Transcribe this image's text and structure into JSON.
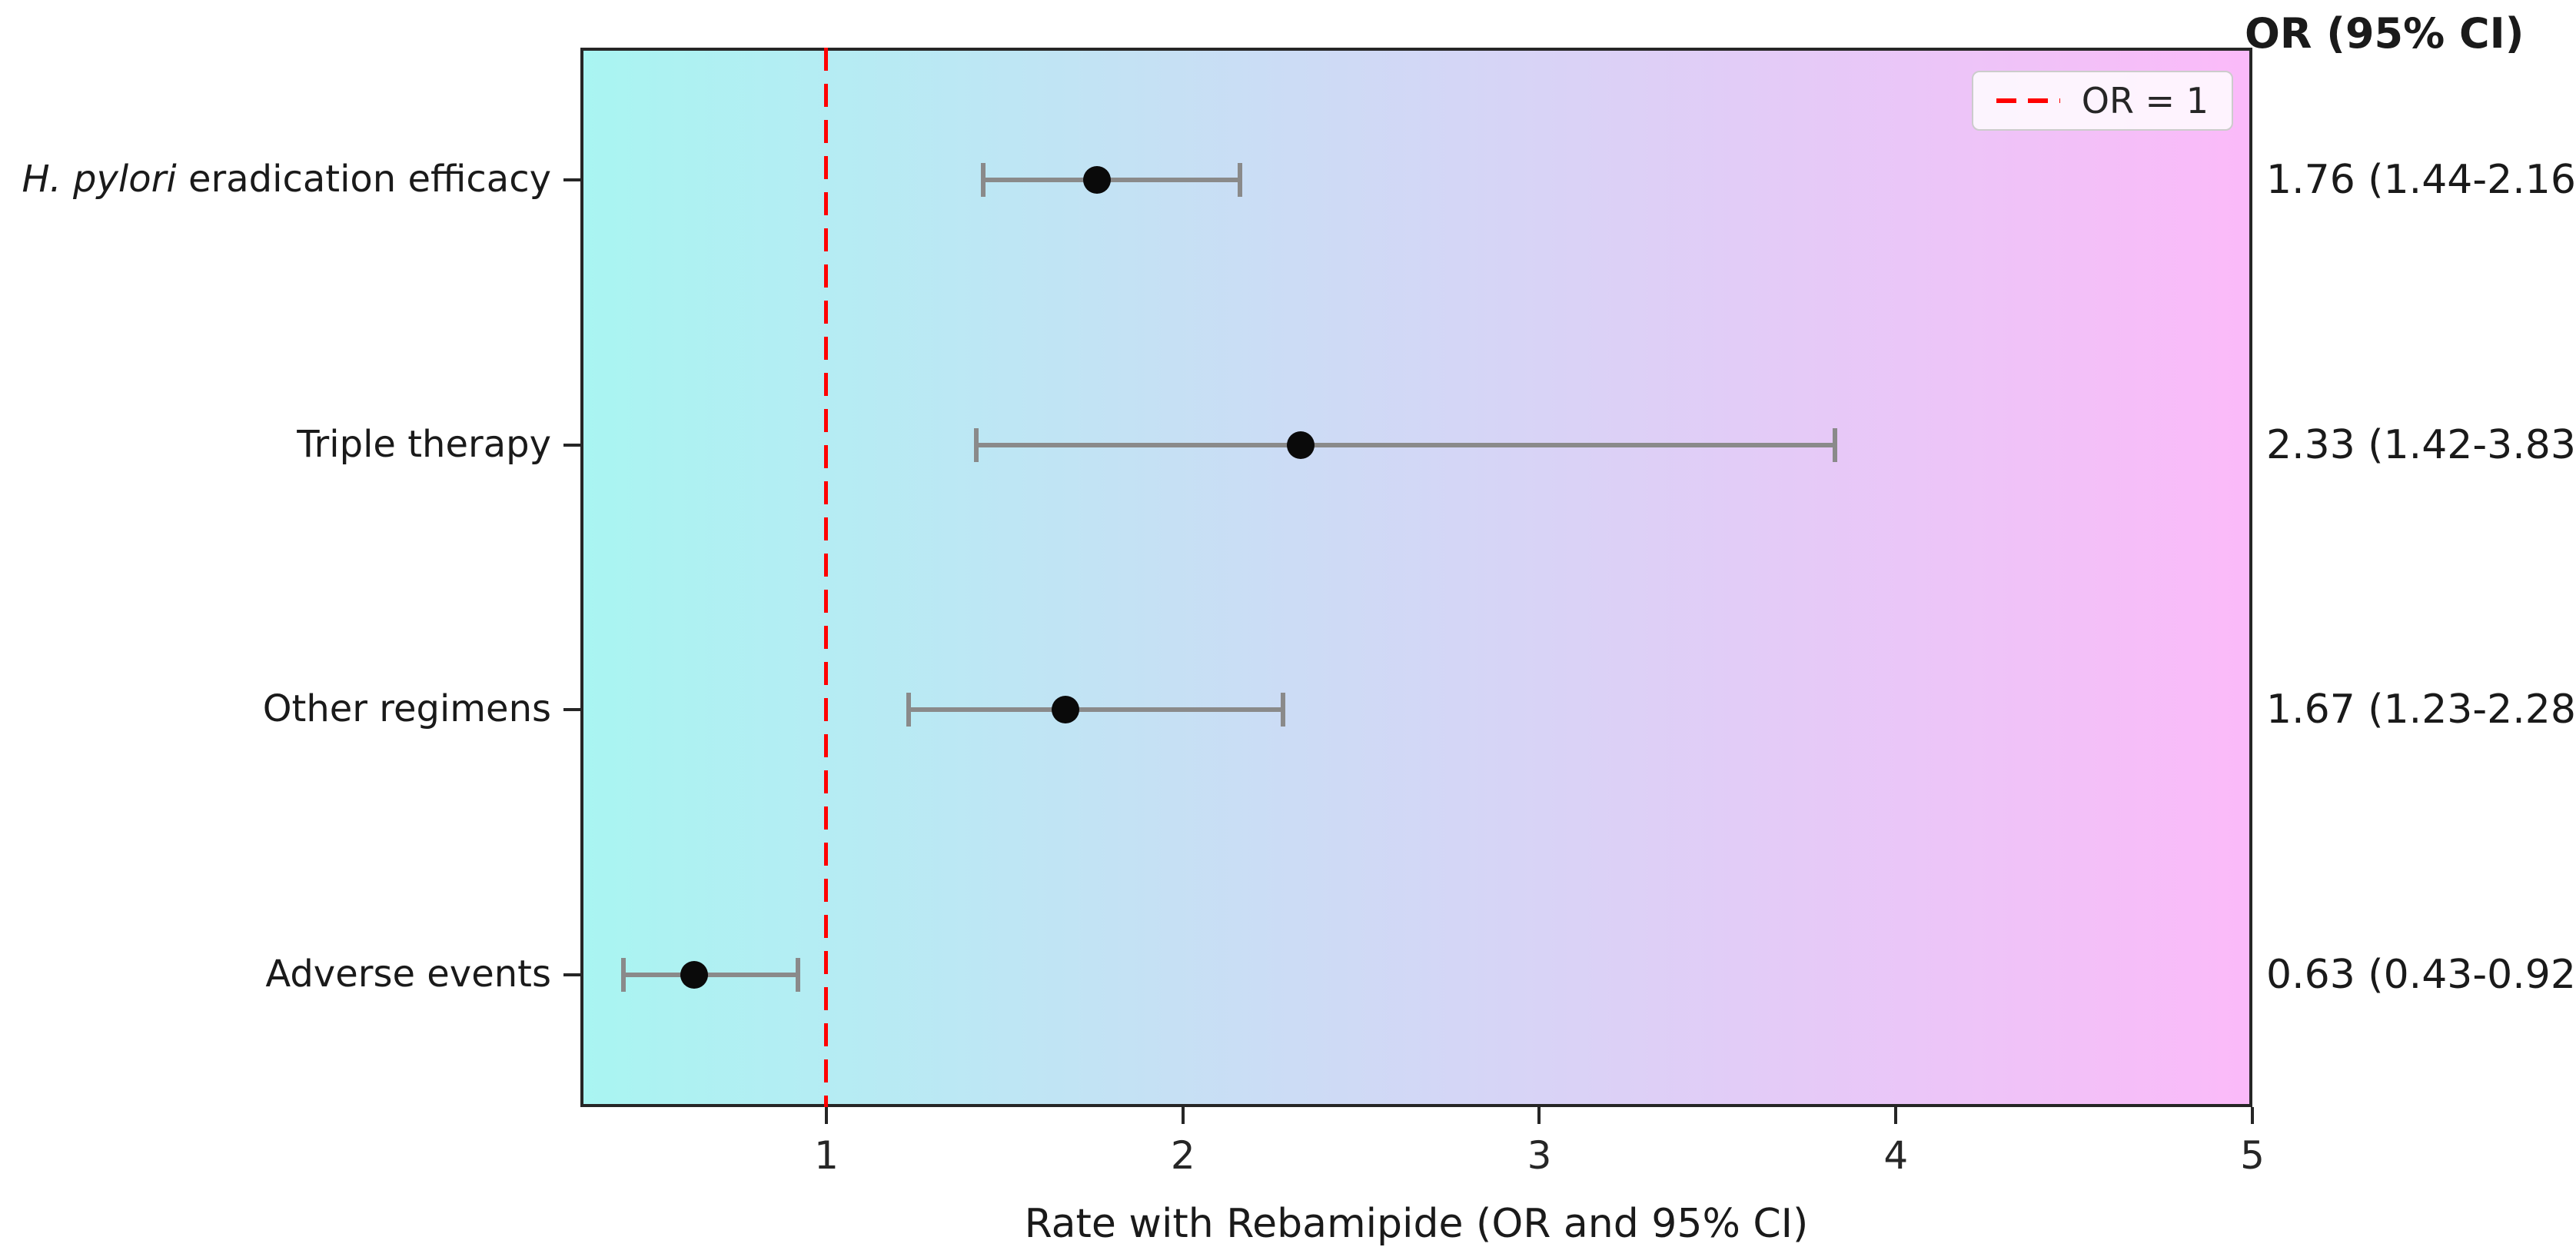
{
  "right_column": {
    "title": "OR (95% CI)"
  },
  "legend": {
    "position": "upper-right",
    "entries": [
      {
        "label": "OR = 1",
        "style": "red-dashed-line"
      }
    ]
  },
  "colors": {
    "gradient_left": "#a9f5f2",
    "gradient_right": "#fbbaf9",
    "reference_line": "#ff0000",
    "error_bar": "#8a8a8a",
    "marker": "#0a0a0a",
    "spine": "#262626"
  },
  "chart_data": {
    "type": "scatter",
    "subtype": "forest-plot",
    "title": "",
    "xlabel": "Rate with Rebamipide (OR and 95% CI)",
    "ylabel": "",
    "xlim": [
      0.31,
      5
    ],
    "x_ticks": [
      "1",
      "2",
      "3",
      "4",
      "5"
    ],
    "x_tick_values": [
      1,
      2,
      3,
      4,
      5
    ],
    "grid": false,
    "reference_line_x": 1,
    "background_gradient": [
      "#a9f5f2",
      "#fbbaf9"
    ],
    "rows": [
      {
        "label": "H. pylori eradication efficacy",
        "label_italic_part": "H. pylori",
        "label_regular_part": " eradication efficacy",
        "or": 1.76,
        "ci_low": 1.44,
        "ci_high": 2.16,
        "or_ci_text": "1.76 (1.44-2.16)"
      },
      {
        "label": "Triple therapy",
        "label_italic_part": "",
        "label_regular_part": "Triple therapy",
        "or": 2.33,
        "ci_low": 1.42,
        "ci_high": 3.83,
        "or_ci_text": "2.33 (1.42-3.83)"
      },
      {
        "label": "Other regimens",
        "label_italic_part": "",
        "label_regular_part": "Other regimens",
        "or": 1.67,
        "ci_low": 1.23,
        "ci_high": 2.28,
        "or_ci_text": "1.67 (1.23-2.28)"
      },
      {
        "label": "Adverse events",
        "label_italic_part": "",
        "label_regular_part": "Adverse events",
        "or": 0.63,
        "ci_low": 0.43,
        "ci_high": 0.92,
        "or_ci_text": "0.63 (0.43-0.92)"
      }
    ]
  }
}
